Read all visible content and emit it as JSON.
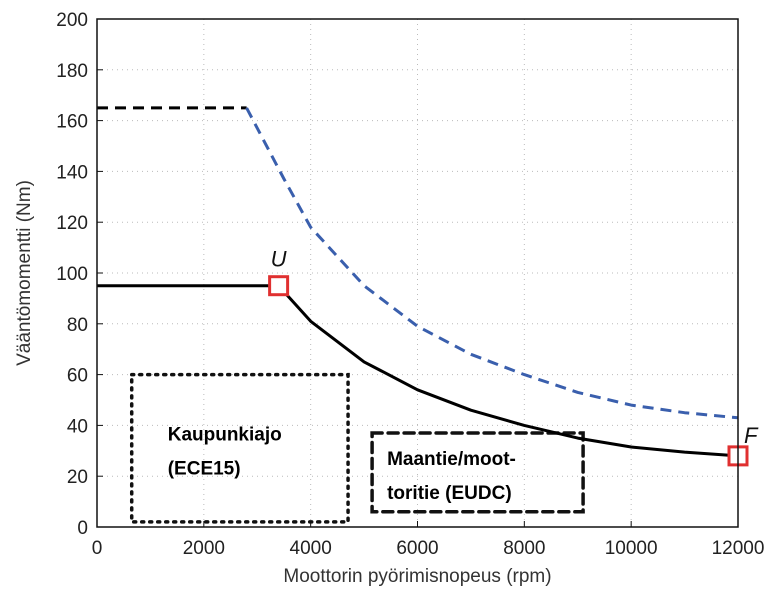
{
  "chart_data": {
    "type": "line",
    "xlabel": "Moottorin pyörimisnopeus  (rpm)",
    "ylabel": "Vääntömomentti (Nm)",
    "xlim": [
      0,
      12000
    ],
    "ylim": [
      0,
      200
    ],
    "x_ticks": [
      0,
      2000,
      4000,
      6000,
      8000,
      10000,
      12000
    ],
    "y_ticks": [
      0,
      20,
      40,
      60,
      80,
      100,
      120,
      140,
      160,
      180,
      200
    ],
    "grid": "dotted",
    "series": [
      {
        "style": "dashed",
        "color": "#000000",
        "points": [
          [
            0,
            165
          ],
          [
            2800,
            165
          ]
        ]
      },
      {
        "style": "dashed",
        "color": "#3a5fad",
        "points": [
          [
            2800,
            165
          ],
          [
            3500,
            137
          ],
          [
            4000,
            118
          ],
          [
            5000,
            95
          ],
          [
            6000,
            79
          ],
          [
            7000,
            68
          ],
          [
            8000,
            60
          ],
          [
            9000,
            53
          ],
          [
            10000,
            48
          ],
          [
            11000,
            45
          ],
          [
            12000,
            43
          ]
        ]
      },
      {
        "style": "solid",
        "color": "#000000",
        "points": [
          [
            0,
            95
          ],
          [
            3400,
            95
          ],
          [
            4000,
            81
          ],
          [
            5000,
            65
          ],
          [
            6000,
            54
          ],
          [
            7000,
            46
          ],
          [
            8000,
            40
          ],
          [
            9000,
            35
          ],
          [
            10000,
            31.5
          ],
          [
            11000,
            29.5
          ],
          [
            12000,
            28
          ]
        ]
      }
    ],
    "points": [
      {
        "label": "U",
        "x": 3400,
        "y": 95,
        "color": "#e03030"
      },
      {
        "label": "F",
        "x": 12000,
        "y": 28,
        "color": "#e03030"
      }
    ],
    "regions": [
      {
        "lines": [
          "Kaupunkiajo",
          "(ECE15)"
        ],
        "style": "dotted",
        "x": [
          650,
          4700
        ],
        "y": [
          2,
          60
        ]
      },
      {
        "lines": [
          "Maantie/moot-",
          "toritie  (EUDC)"
        ],
        "style": "dashed",
        "x": [
          5150,
          9100
        ],
        "y": [
          6,
          37
        ]
      }
    ]
  }
}
